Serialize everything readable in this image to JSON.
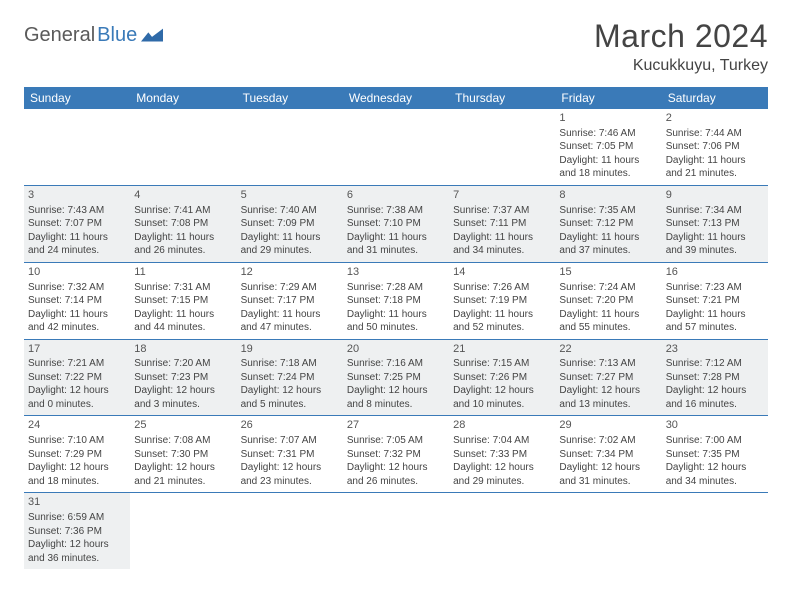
{
  "logo": {
    "part1": "General",
    "part2": "Blue"
  },
  "title": "March 2024",
  "location": "Kucukkuyu, Turkey",
  "colors": {
    "header_bg": "#3a7ab8",
    "header_text": "#ffffff",
    "shaded_bg": "#eef0f1",
    "text": "#444444",
    "rule": "#3a7ab8"
  },
  "fonts": {
    "title_size": 32,
    "location_size": 16,
    "th_size": 12,
    "cell_size": 10
  },
  "days_of_week": [
    "Sunday",
    "Monday",
    "Tuesday",
    "Wednesday",
    "Thursday",
    "Friday",
    "Saturday"
  ],
  "weeks": [
    {
      "shaded": false,
      "cells": [
        null,
        null,
        null,
        null,
        null,
        {
          "num": "1",
          "sunrise": "Sunrise: 7:46 AM",
          "sunset": "Sunset: 7:05 PM",
          "daylight": "Daylight: 11 hours and 18 minutes."
        },
        {
          "num": "2",
          "sunrise": "Sunrise: 7:44 AM",
          "sunset": "Sunset: 7:06 PM",
          "daylight": "Daylight: 11 hours and 21 minutes."
        }
      ]
    },
    {
      "shaded": true,
      "cells": [
        {
          "num": "3",
          "sunrise": "Sunrise: 7:43 AM",
          "sunset": "Sunset: 7:07 PM",
          "daylight": "Daylight: 11 hours and 24 minutes."
        },
        {
          "num": "4",
          "sunrise": "Sunrise: 7:41 AM",
          "sunset": "Sunset: 7:08 PM",
          "daylight": "Daylight: 11 hours and 26 minutes."
        },
        {
          "num": "5",
          "sunrise": "Sunrise: 7:40 AM",
          "sunset": "Sunset: 7:09 PM",
          "daylight": "Daylight: 11 hours and 29 minutes."
        },
        {
          "num": "6",
          "sunrise": "Sunrise: 7:38 AM",
          "sunset": "Sunset: 7:10 PM",
          "daylight": "Daylight: 11 hours and 31 minutes."
        },
        {
          "num": "7",
          "sunrise": "Sunrise: 7:37 AM",
          "sunset": "Sunset: 7:11 PM",
          "daylight": "Daylight: 11 hours and 34 minutes."
        },
        {
          "num": "8",
          "sunrise": "Sunrise: 7:35 AM",
          "sunset": "Sunset: 7:12 PM",
          "daylight": "Daylight: 11 hours and 37 minutes."
        },
        {
          "num": "9",
          "sunrise": "Sunrise: 7:34 AM",
          "sunset": "Sunset: 7:13 PM",
          "daylight": "Daylight: 11 hours and 39 minutes."
        }
      ]
    },
    {
      "shaded": false,
      "cells": [
        {
          "num": "10",
          "sunrise": "Sunrise: 7:32 AM",
          "sunset": "Sunset: 7:14 PM",
          "daylight": "Daylight: 11 hours and 42 minutes."
        },
        {
          "num": "11",
          "sunrise": "Sunrise: 7:31 AM",
          "sunset": "Sunset: 7:15 PM",
          "daylight": "Daylight: 11 hours and 44 minutes."
        },
        {
          "num": "12",
          "sunrise": "Sunrise: 7:29 AM",
          "sunset": "Sunset: 7:17 PM",
          "daylight": "Daylight: 11 hours and 47 minutes."
        },
        {
          "num": "13",
          "sunrise": "Sunrise: 7:28 AM",
          "sunset": "Sunset: 7:18 PM",
          "daylight": "Daylight: 11 hours and 50 minutes."
        },
        {
          "num": "14",
          "sunrise": "Sunrise: 7:26 AM",
          "sunset": "Sunset: 7:19 PM",
          "daylight": "Daylight: 11 hours and 52 minutes."
        },
        {
          "num": "15",
          "sunrise": "Sunrise: 7:24 AM",
          "sunset": "Sunset: 7:20 PM",
          "daylight": "Daylight: 11 hours and 55 minutes."
        },
        {
          "num": "16",
          "sunrise": "Sunrise: 7:23 AM",
          "sunset": "Sunset: 7:21 PM",
          "daylight": "Daylight: 11 hours and 57 minutes."
        }
      ]
    },
    {
      "shaded": true,
      "cells": [
        {
          "num": "17",
          "sunrise": "Sunrise: 7:21 AM",
          "sunset": "Sunset: 7:22 PM",
          "daylight": "Daylight: 12 hours and 0 minutes."
        },
        {
          "num": "18",
          "sunrise": "Sunrise: 7:20 AM",
          "sunset": "Sunset: 7:23 PM",
          "daylight": "Daylight: 12 hours and 3 minutes."
        },
        {
          "num": "19",
          "sunrise": "Sunrise: 7:18 AM",
          "sunset": "Sunset: 7:24 PM",
          "daylight": "Daylight: 12 hours and 5 minutes."
        },
        {
          "num": "20",
          "sunrise": "Sunrise: 7:16 AM",
          "sunset": "Sunset: 7:25 PM",
          "daylight": "Daylight: 12 hours and 8 minutes."
        },
        {
          "num": "21",
          "sunrise": "Sunrise: 7:15 AM",
          "sunset": "Sunset: 7:26 PM",
          "daylight": "Daylight: 12 hours and 10 minutes."
        },
        {
          "num": "22",
          "sunrise": "Sunrise: 7:13 AM",
          "sunset": "Sunset: 7:27 PM",
          "daylight": "Daylight: 12 hours and 13 minutes."
        },
        {
          "num": "23",
          "sunrise": "Sunrise: 7:12 AM",
          "sunset": "Sunset: 7:28 PM",
          "daylight": "Daylight: 12 hours and 16 minutes."
        }
      ]
    },
    {
      "shaded": false,
      "cells": [
        {
          "num": "24",
          "sunrise": "Sunrise: 7:10 AM",
          "sunset": "Sunset: 7:29 PM",
          "daylight": "Daylight: 12 hours and 18 minutes."
        },
        {
          "num": "25",
          "sunrise": "Sunrise: 7:08 AM",
          "sunset": "Sunset: 7:30 PM",
          "daylight": "Daylight: 12 hours and 21 minutes."
        },
        {
          "num": "26",
          "sunrise": "Sunrise: 7:07 AM",
          "sunset": "Sunset: 7:31 PM",
          "daylight": "Daylight: 12 hours and 23 minutes."
        },
        {
          "num": "27",
          "sunrise": "Sunrise: 7:05 AM",
          "sunset": "Sunset: 7:32 PM",
          "daylight": "Daylight: 12 hours and 26 minutes."
        },
        {
          "num": "28",
          "sunrise": "Sunrise: 7:04 AM",
          "sunset": "Sunset: 7:33 PM",
          "daylight": "Daylight: 12 hours and 29 minutes."
        },
        {
          "num": "29",
          "sunrise": "Sunrise: 7:02 AM",
          "sunset": "Sunset: 7:34 PM",
          "daylight": "Daylight: 12 hours and 31 minutes."
        },
        {
          "num": "30",
          "sunrise": "Sunrise: 7:00 AM",
          "sunset": "Sunset: 7:35 PM",
          "daylight": "Daylight: 12 hours and 34 minutes."
        }
      ]
    },
    {
      "shaded": true,
      "cells": [
        {
          "num": "31",
          "sunrise": "Sunrise: 6:59 AM",
          "sunset": "Sunset: 7:36 PM",
          "daylight": "Daylight: 12 hours and 36 minutes."
        },
        null,
        null,
        null,
        null,
        null,
        null
      ]
    }
  ]
}
